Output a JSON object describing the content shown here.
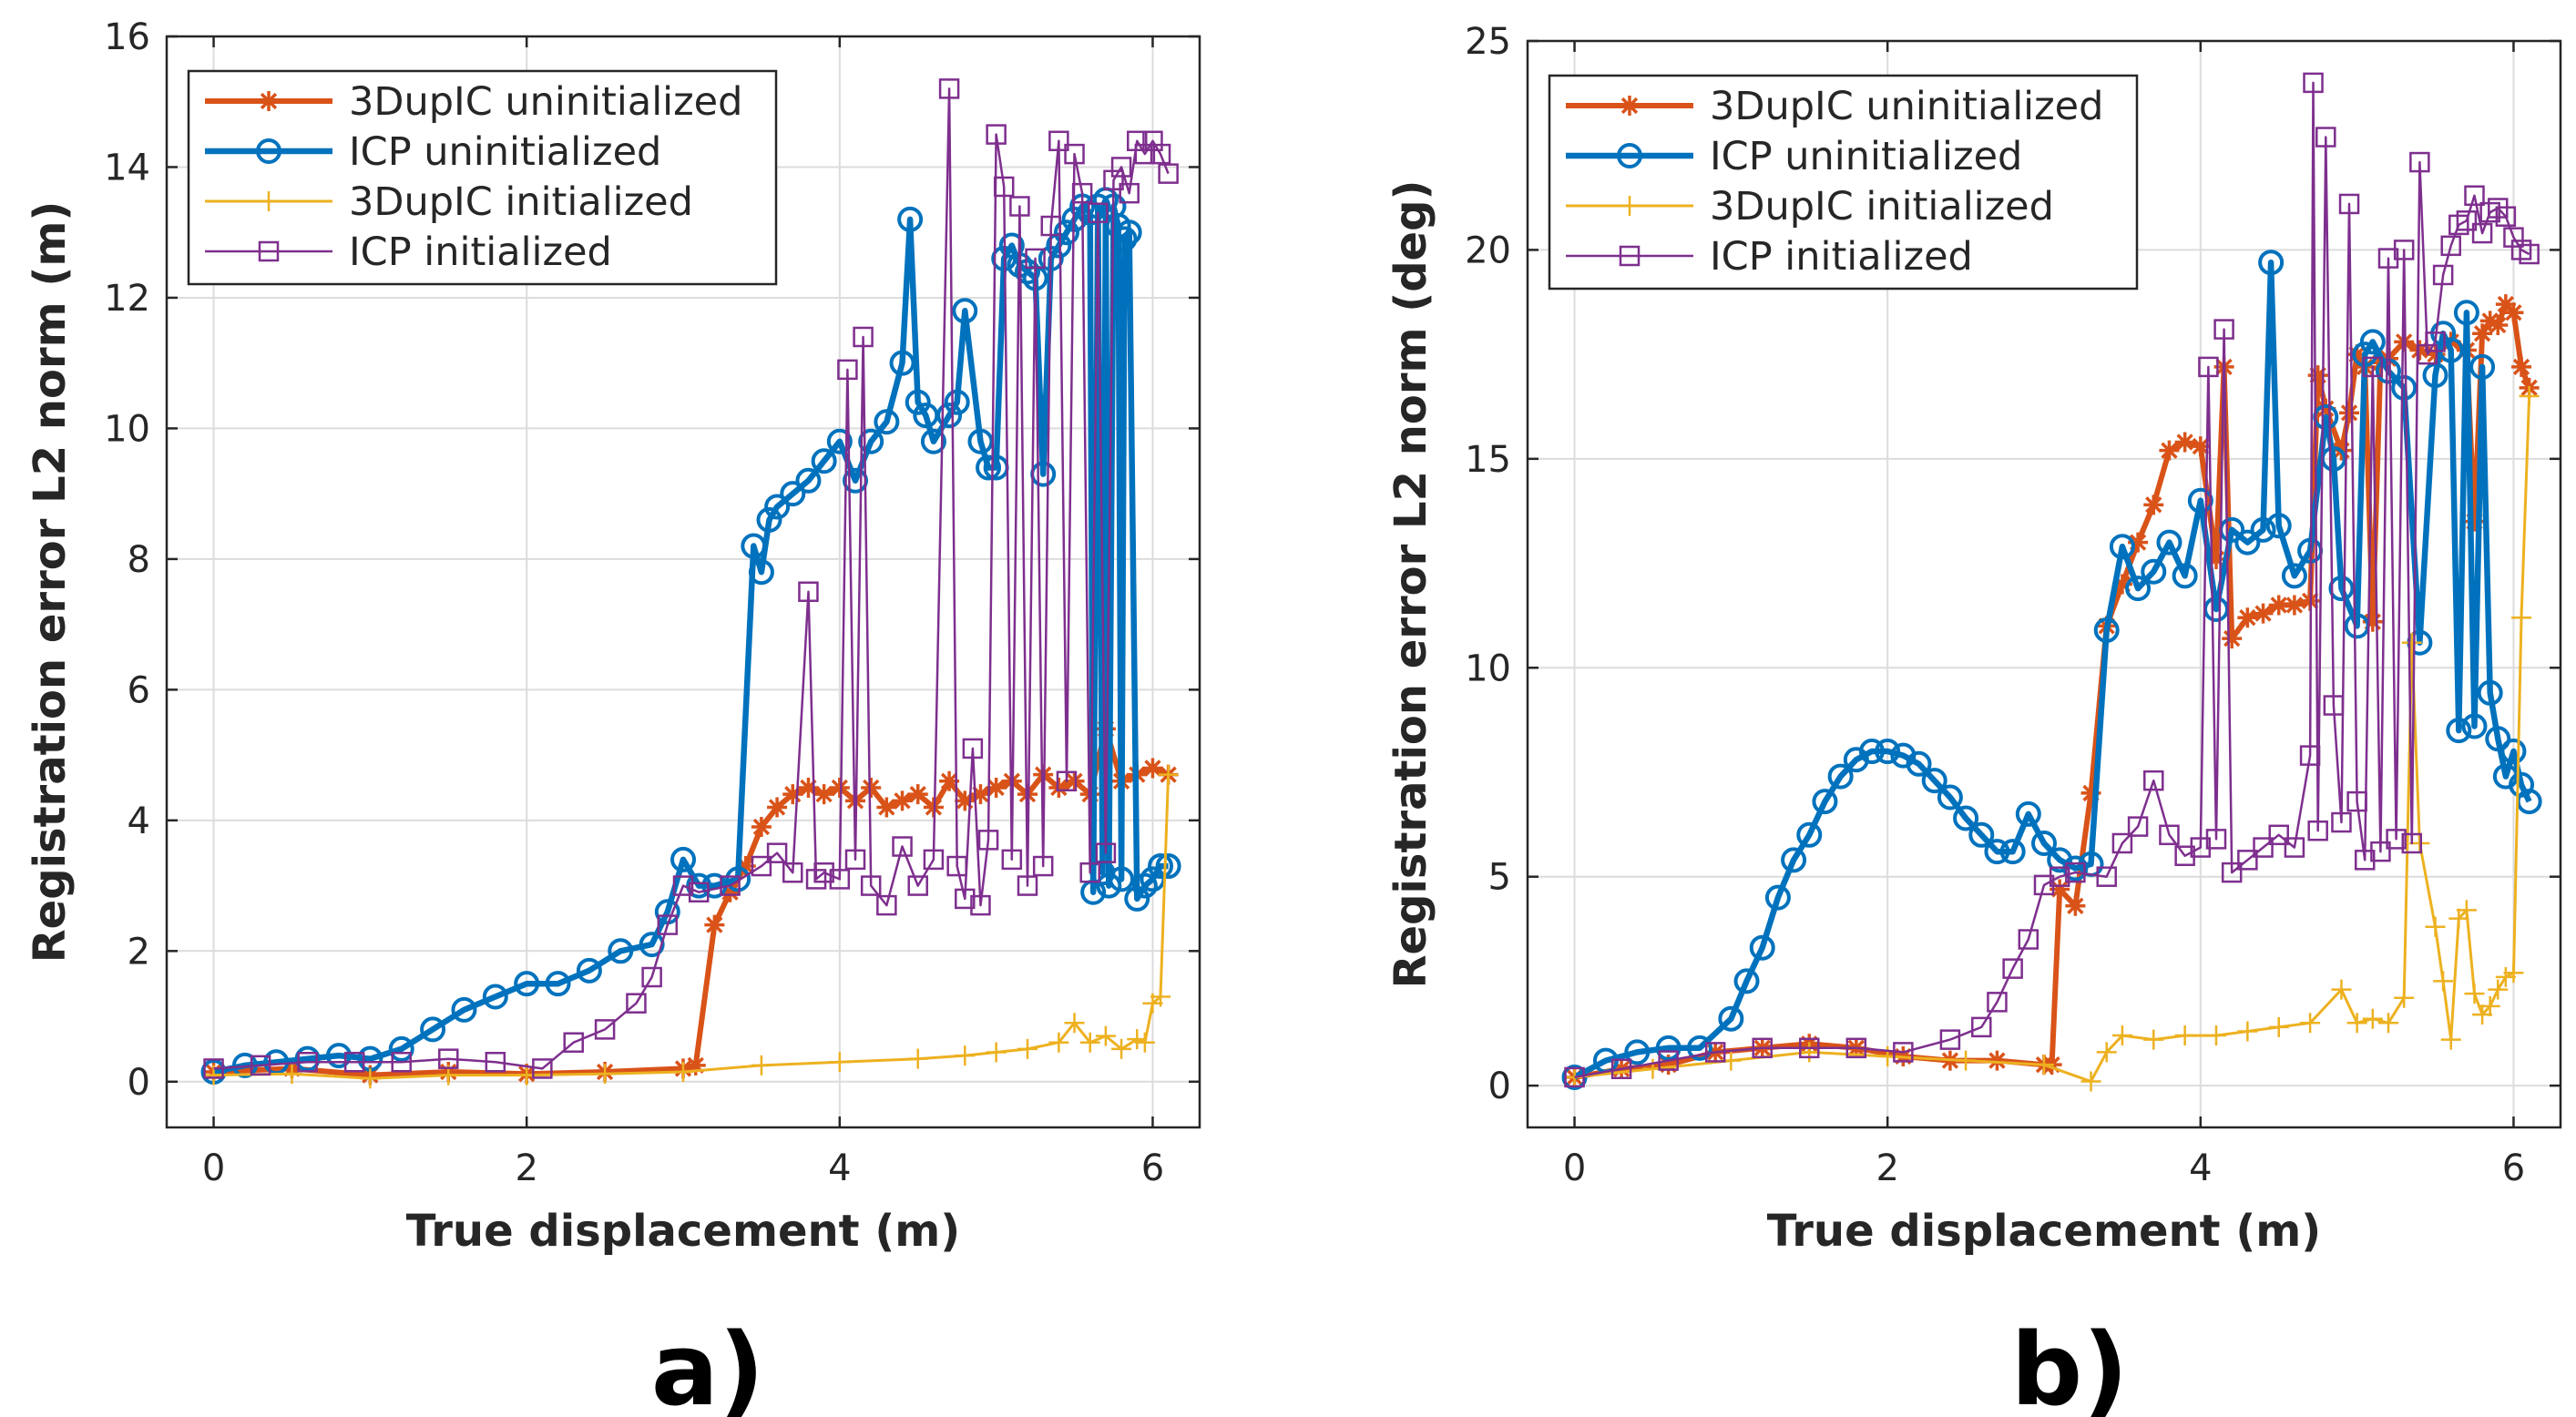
{
  "chart_data": [
    {
      "type": "line",
      "panel_label": "a)",
      "xlabel": "True displacement (m)",
      "ylabel": "Registration error L2 norm (m)",
      "xlim": [
        -0.3,
        6.3
      ],
      "ylim": [
        -0.7,
        16
      ],
      "xticks": [
        0,
        2,
        4,
        6
      ],
      "yticks": [
        0,
        2,
        4,
        6,
        8,
        10,
        12,
        14,
        16
      ],
      "grid": true,
      "legend_position": "top-left",
      "series": [
        {
          "name": "3DupIC uninitialized",
          "color": "#D95319",
          "marker": "asterisk",
          "x": [
            0,
            0.5,
            1,
            1.5,
            2,
            2.5,
            3.0,
            3.08,
            3.2,
            3.3,
            3.4,
            3.5,
            3.6,
            3.7,
            3.8,
            3.9,
            4.0,
            4.1,
            4.2,
            4.3,
            4.4,
            4.5,
            4.6,
            4.7,
            4.8,
            4.9,
            5.0,
            5.1,
            5.2,
            5.3,
            5.4,
            5.5,
            5.6,
            5.7,
            5.8,
            5.9,
            6.0,
            6.1
          ],
          "y": [
            0.15,
            0.2,
            0.1,
            0.15,
            0.12,
            0.15,
            0.2,
            0.25,
            2.4,
            2.9,
            3.3,
            3.9,
            4.2,
            4.4,
            4.5,
            4.4,
            4.5,
            4.3,
            4.5,
            4.2,
            4.3,
            4.4,
            4.2,
            4.6,
            4.3,
            4.4,
            4.5,
            4.6,
            4.4,
            4.7,
            4.5,
            4.6,
            4.4,
            5.4,
            4.6,
            4.7,
            4.8,
            4.7
          ]
        },
        {
          "name": "ICP uninitialized",
          "color": "#0072BD",
          "marker": "circle",
          "x": [
            0,
            0.2,
            0.4,
            0.6,
            0.8,
            1.0,
            1.2,
            1.4,
            1.6,
            1.8,
            2.0,
            2.2,
            2.4,
            2.6,
            2.8,
            2.9,
            3.0,
            3.1,
            3.2,
            3.35,
            3.45,
            3.5,
            3.55,
            3.6,
            3.7,
            3.8,
            3.9,
            4.0,
            4.1,
            4.2,
            4.3,
            4.4,
            4.45,
            4.5,
            4.55,
            4.6,
            4.7,
            4.75,
            4.8,
            4.9,
            4.95,
            5.0,
            5.05,
            5.1,
            5.15,
            5.2,
            5.25,
            5.3,
            5.35,
            5.4,
            5.45,
            5.5,
            5.55,
            5.6,
            5.62,
            5.65,
            5.68,
            5.7,
            5.72,
            5.75,
            5.78,
            5.8,
            5.82,
            5.85,
            5.9,
            5.95,
            6.0,
            6.05,
            6.1
          ],
          "y": [
            0.15,
            0.25,
            0.3,
            0.35,
            0.4,
            0.35,
            0.5,
            0.8,
            1.1,
            1.3,
            1.5,
            1.5,
            1.7,
            2.0,
            2.1,
            2.6,
            3.4,
            3.0,
            3.0,
            3.1,
            8.2,
            7.8,
            8.6,
            8.8,
            9.0,
            9.2,
            9.5,
            9.8,
            9.2,
            9.8,
            10.1,
            11.0,
            13.2,
            10.4,
            10.2,
            9.8,
            10.2,
            10.4,
            11.8,
            9.8,
            9.4,
            9.4,
            12.6,
            12.8,
            12.5,
            12.4,
            12.3,
            9.3,
            12.6,
            12.8,
            13.0,
            13.2,
            13.4,
            13.3,
            2.9,
            13.4,
            3.2,
            13.5,
            3.0,
            13.4,
            13.1,
            3.1,
            12.9,
            13.0,
            2.8,
            3.0,
            3.1,
            3.3,
            3.3
          ]
        },
        {
          "name": "3DupIC initialized",
          "color": "#EDB120",
          "marker": "plus",
          "x": [
            0,
            0.5,
            1,
            1.5,
            2,
            2.5,
            3.0,
            3.5,
            4.0,
            4.5,
            4.8,
            5.0,
            5.2,
            5.4,
            5.5,
            5.6,
            5.7,
            5.8,
            5.9,
            5.95,
            6.0,
            6.05,
            6.1
          ],
          "y": [
            0.1,
            0.12,
            0.05,
            0.1,
            0.1,
            0.12,
            0.15,
            0.25,
            0.3,
            0.35,
            0.4,
            0.45,
            0.5,
            0.6,
            0.9,
            0.6,
            0.7,
            0.5,
            0.65,
            0.6,
            1.2,
            1.3,
            4.7
          ]
        },
        {
          "name": "ICP initialized",
          "color": "#7E2F8E",
          "marker": "square",
          "x": [
            0,
            0.3,
            0.6,
            0.9,
            1.2,
            1.5,
            1.8,
            2.1,
            2.3,
            2.5,
            2.7,
            2.8,
            2.9,
            3.0,
            3.1,
            3.3,
            3.5,
            3.6,
            3.7,
            3.8,
            3.85,
            3.9,
            4.0,
            4.05,
            4.1,
            4.15,
            4.2,
            4.3,
            4.4,
            4.5,
            4.6,
            4.7,
            4.75,
            4.8,
            4.85,
            4.9,
            4.95,
            5.0,
            5.05,
            5.1,
            5.15,
            5.2,
            5.25,
            5.3,
            5.35,
            5.4,
            5.45,
            5.5,
            5.55,
            5.6,
            5.65,
            5.7,
            5.75,
            5.8,
            5.85,
            5.9,
            5.95,
            6.0,
            6.05,
            6.1
          ],
          "y": [
            0.2,
            0.25,
            0.3,
            0.3,
            0.3,
            0.35,
            0.3,
            0.2,
            0.6,
            0.8,
            1.2,
            1.6,
            2.4,
            3.0,
            2.9,
            3.0,
            3.3,
            3.5,
            3.2,
            7.5,
            3.1,
            3.2,
            3.1,
            10.9,
            3.4,
            11.4,
            3.0,
            2.7,
            3.6,
            3.0,
            3.4,
            15.2,
            3.3,
            2.8,
            5.1,
            2.7,
            3.7,
            14.5,
            13.7,
            3.4,
            13.4,
            3.0,
            12.6,
            3.3,
            13.1,
            14.4,
            4.6,
            14.2,
            13.6,
            3.2,
            13.3,
            3.5,
            13.8,
            14.0,
            13.6,
            14.4,
            14.2,
            14.4,
            14.2,
            13.9
          ]
        }
      ]
    },
    {
      "type": "line",
      "panel_label": "b)",
      "xlabel": "True displacement (m)",
      "ylabel": "Registration error L2 norm (deg)",
      "xlim": [
        -0.3,
        6.3
      ],
      "ylim": [
        -1,
        25
      ],
      "xticks": [
        0,
        2,
        4,
        6
      ],
      "yticks": [
        0,
        5,
        10,
        15,
        20,
        25
      ],
      "grid": true,
      "legend_position": "top-left",
      "series": [
        {
          "name": "3DupIC uninitialized",
          "color": "#D95319",
          "marker": "asterisk",
          "x": [
            0,
            0.3,
            0.6,
            0.9,
            1.2,
            1.5,
            1.8,
            2.1,
            2.4,
            2.7,
            3.0,
            3.05,
            3.1,
            3.2,
            3.3,
            3.4,
            3.5,
            3.6,
            3.7,
            3.8,
            3.9,
            4.0,
            4.1,
            4.15,
            4.2,
            4.3,
            4.4,
            4.5,
            4.6,
            4.7,
            4.75,
            4.8,
            4.9,
            4.95,
            5.0,
            5.05,
            5.1,
            5.15,
            5.2,
            5.3,
            5.4,
            5.5,
            5.6,
            5.7,
            5.75,
            5.8,
            5.85,
            5.9,
            5.95,
            6.0,
            6.05,
            6.1
          ],
          "y": [
            0.2,
            0.4,
            0.5,
            0.8,
            0.9,
            1.0,
            0.9,
            0.7,
            0.6,
            0.6,
            0.5,
            0.5,
            4.7,
            4.3,
            7.0,
            11.0,
            12.0,
            13.0,
            13.9,
            15.2,
            15.4,
            15.3,
            12.6,
            17.2,
            10.7,
            11.2,
            11.3,
            11.5,
            11.5,
            11.6,
            17.0,
            16.2,
            15.2,
            16.1,
            17.5,
            17.2,
            11.1,
            17.3,
            17.4,
            17.8,
            17.6,
            17.5,
            17.8,
            17.6,
            13.5,
            18.0,
            18.3,
            18.2,
            18.7,
            18.5,
            17.2,
            16.7
          ]
        },
        {
          "name": "ICP uninitialized",
          "color": "#0072BD",
          "marker": "circle",
          "x": [
            0,
            0.2,
            0.4,
            0.6,
            0.8,
            1.0,
            1.1,
            1.2,
            1.3,
            1.4,
            1.5,
            1.6,
            1.7,
            1.8,
            1.9,
            2.0,
            2.1,
            2.2,
            2.3,
            2.4,
            2.5,
            2.6,
            2.7,
            2.8,
            2.9,
            3.0,
            3.1,
            3.2,
            3.3,
            3.4,
            3.5,
            3.6,
            3.7,
            3.8,
            3.9,
            4.0,
            4.1,
            4.2,
            4.3,
            4.4,
            4.45,
            4.5,
            4.6,
            4.7,
            4.8,
            4.85,
            4.9,
            5.0,
            5.05,
            5.1,
            5.2,
            5.3,
            5.4,
            5.5,
            5.55,
            5.6,
            5.65,
            5.7,
            5.75,
            5.8,
            5.85,
            5.9,
            5.95,
            6.0,
            6.05,
            6.1
          ],
          "y": [
            0.2,
            0.6,
            0.8,
            0.9,
            0.9,
            1.6,
            2.5,
            3.3,
            4.5,
            5.4,
            6.0,
            6.8,
            7.4,
            7.8,
            8.0,
            8.0,
            7.9,
            7.7,
            7.3,
            6.9,
            6.4,
            6.0,
            5.6,
            5.6,
            6.5,
            5.8,
            5.4,
            5.2,
            5.3,
            10.9,
            12.9,
            11.9,
            12.3,
            13.0,
            12.2,
            14.0,
            11.4,
            13.3,
            13.0,
            13.3,
            19.7,
            13.4,
            12.2,
            12.8,
            16.0,
            15.0,
            11.9,
            11.0,
            17.5,
            17.8,
            17.1,
            16.7,
            10.6,
            17.0,
            18.0,
            17.6,
            8.5,
            18.5,
            8.6,
            17.2,
            9.4,
            8.3,
            7.4,
            8.0,
            7.2,
            6.8
          ]
        },
        {
          "name": "3DupIC initialized",
          "color": "#EDB120",
          "marker": "plus",
          "x": [
            0,
            0.5,
            1.0,
            1.5,
            2.0,
            2.5,
            3.0,
            3.3,
            3.4,
            3.5,
            3.7,
            3.9,
            4.1,
            4.3,
            4.5,
            4.7,
            4.9,
            5.0,
            5.1,
            5.2,
            5.3,
            5.35,
            5.4,
            5.5,
            5.55,
            5.6,
            5.65,
            5.7,
            5.75,
            5.8,
            5.85,
            5.9,
            5.95,
            6.0,
            6.05,
            6.1
          ],
          "y": [
            0.2,
            0.4,
            0.6,
            0.8,
            0.7,
            0.6,
            0.5,
            0.1,
            0.8,
            1.2,
            1.1,
            1.2,
            1.2,
            1.3,
            1.4,
            1.5,
            2.3,
            1.5,
            1.6,
            1.5,
            2.1,
            10.6,
            5.8,
            3.8,
            2.5,
            1.1,
            4.0,
            4.2,
            2.2,
            1.7,
            1.9,
            2.3,
            2.6,
            2.7,
            11.2,
            16.5
          ]
        },
        {
          "name": "ICP initialized",
          "color": "#7E2F8E",
          "marker": "square",
          "x": [
            0,
            0.3,
            0.6,
            0.9,
            1.2,
            1.5,
            1.8,
            2.1,
            2.4,
            2.6,
            2.7,
            2.8,
            2.9,
            3.0,
            3.1,
            3.2,
            3.4,
            3.5,
            3.6,
            3.7,
            3.8,
            3.9,
            4.0,
            4.05,
            4.1,
            4.15,
            4.2,
            4.3,
            4.4,
            4.5,
            4.6,
            4.7,
            4.72,
            4.75,
            4.8,
            4.85,
            4.9,
            4.95,
            5.0,
            5.05,
            5.1,
            5.15,
            5.2,
            5.25,
            5.3,
            5.35,
            5.4,
            5.45,
            5.5,
            5.55,
            5.6,
            5.65,
            5.7,
            5.75,
            5.8,
            5.85,
            5.9,
            5.95,
            6.0,
            6.05,
            6.1
          ],
          "y": [
            0.2,
            0.4,
            0.6,
            0.8,
            0.9,
            0.9,
            0.9,
            0.8,
            1.1,
            1.4,
            2.0,
            2.8,
            3.5,
            4.8,
            5.0,
            5.1,
            5.0,
            5.8,
            6.2,
            7.3,
            6.0,
            5.5,
            5.7,
            17.2,
            5.9,
            18.1,
            5.1,
            5.4,
            5.7,
            6.0,
            5.7,
            7.9,
            24.0,
            6.1,
            22.7,
            9.1,
            6.3,
            21.1,
            6.8,
            5.4,
            17.2,
            5.6,
            19.8,
            5.9,
            20.0,
            5.8,
            22.1,
            17.5,
            17.8,
            19.4,
            20.1,
            20.6,
            20.7,
            21.3,
            20.4,
            20.9,
            21.0,
            20.8,
            20.3,
            20.0,
            19.9
          ]
        }
      ]
    }
  ]
}
